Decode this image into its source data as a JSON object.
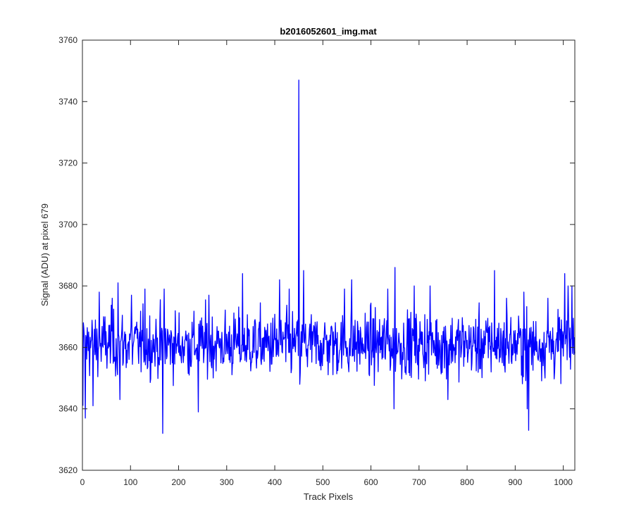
{
  "chart_data": {
    "type": "line",
    "title": "b2016052601_img.mat",
    "xlabel": "Track Pixels",
    "ylabel": "Signal (ADU) at pixel 679",
    "xlim": [
      0,
      1024
    ],
    "ylim": [
      3620,
      3760
    ],
    "xticks": [
      "0",
      "100",
      "200",
      "300",
      "400",
      "500",
      "600",
      "700",
      "800",
      "900",
      "1000"
    ],
    "yticks": [
      "3620",
      "3640",
      "3660",
      "3680",
      "3700",
      "3720",
      "3740",
      "3760"
    ],
    "grid": false,
    "series": [
      {
        "color": "#0000ff",
        "baseline": 3661,
        "noise_amplitude": 7,
        "n_points": 1024,
        "anchor_points": [
          {
            "x": 1,
            "y": 3641
          },
          {
            "x": 4,
            "y": 3663
          },
          {
            "x": 6,
            "y": 3637
          },
          {
            "x": 13,
            "y": 3665
          },
          {
            "x": 22,
            "y": 3641
          },
          {
            "x": 35,
            "y": 3678
          },
          {
            "x": 62,
            "y": 3676
          },
          {
            "x": 74,
            "y": 3681
          },
          {
            "x": 78,
            "y": 3643
          },
          {
            "x": 102,
            "y": 3677
          },
          {
            "x": 130,
            "y": 3679
          },
          {
            "x": 167,
            "y": 3632
          },
          {
            "x": 170,
            "y": 3679
          },
          {
            "x": 241,
            "y": 3639
          },
          {
            "x": 263,
            "y": 3677
          },
          {
            "x": 333,
            "y": 3684
          },
          {
            "x": 410,
            "y": 3682
          },
          {
            "x": 430,
            "y": 3679
          },
          {
            "x": 450,
            "y": 3747
          },
          {
            "x": 452,
            "y": 3648
          },
          {
            "x": 460,
            "y": 3685
          },
          {
            "x": 545,
            "y": 3679
          },
          {
            "x": 560,
            "y": 3682
          },
          {
            "x": 635,
            "y": 3679
          },
          {
            "x": 648,
            "y": 3640
          },
          {
            "x": 650,
            "y": 3686
          },
          {
            "x": 690,
            "y": 3680
          },
          {
            "x": 723,
            "y": 3680
          },
          {
            "x": 760,
            "y": 3643
          },
          {
            "x": 857,
            "y": 3685
          },
          {
            "x": 882,
            "y": 3676
          },
          {
            "x": 918,
            "y": 3678
          },
          {
            "x": 925,
            "y": 3640
          },
          {
            "x": 928,
            "y": 3633
          },
          {
            "x": 968,
            "y": 3676
          },
          {
            "x": 1003,
            "y": 3684
          },
          {
            "x": 1010,
            "y": 3680
          },
          {
            "x": 1018,
            "y": 3680
          },
          {
            "x": 1024,
            "y": 3658
          }
        ]
      }
    ]
  }
}
